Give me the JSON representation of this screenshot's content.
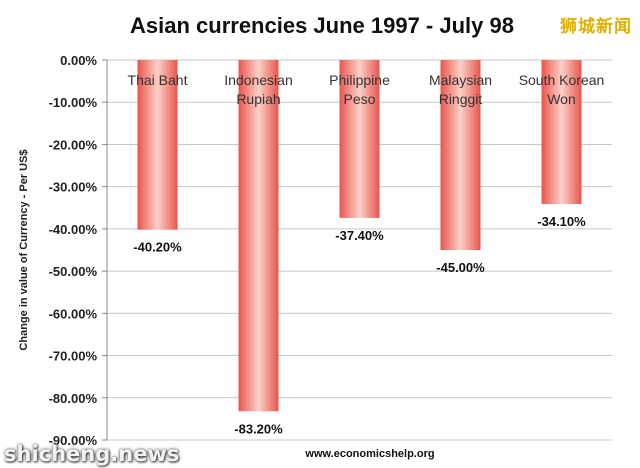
{
  "chart_data": {
    "type": "bar",
    "title": "Asian currencies June 1997 - July 98",
    "ylabel": "Change in value of Currency - Per US$",
    "xlabel": "",
    "ylim": [
      -90,
      0
    ],
    "yticks": [
      0,
      -10,
      -20,
      -30,
      -40,
      -50,
      -60,
      -70,
      -80,
      -90
    ],
    "ytick_labels": [
      "0.00%",
      "-10.00%",
      "-20.00%",
      "-30.00%",
      "-40.00%",
      "-50.00%",
      "-60.00%",
      "-70.00%",
      "-80.00%",
      "-90.00%"
    ],
    "grid": true,
    "legend": "none",
    "categories": [
      [
        "Thai Baht"
      ],
      [
        "Indonesian",
        "Rupiah"
      ],
      [
        "Philippine",
        "Peso"
      ],
      [
        "Malaysian",
        "Ringgit"
      ],
      [
        "South Korean",
        "Won"
      ]
    ],
    "values": [
      -40.2,
      -83.2,
      -37.4,
      -45.0,
      -34.1
    ],
    "data_labels": [
      "-40.20%",
      "-83.20%",
      "-37.40%",
      "-45.00%",
      "-34.10%"
    ],
    "bar_color": "#e8554c",
    "bar_color_light": "#fbd0c8"
  },
  "source": "www.economicshelp.org",
  "watermark_cn": "狮城新闻",
  "watermark_en": "shicheng.news"
}
